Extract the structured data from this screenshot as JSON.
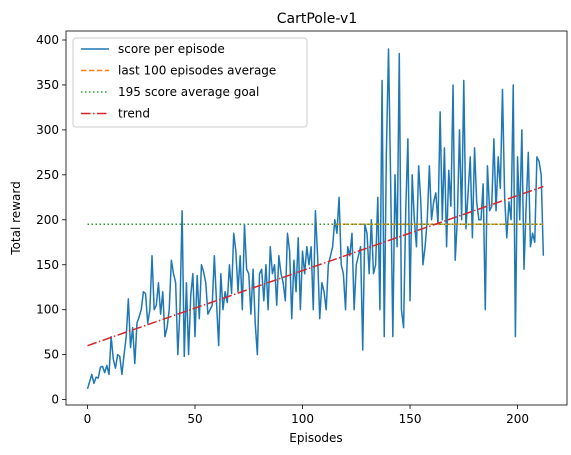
{
  "chart_data": {
    "type": "line",
    "title": "CartPole-v1",
    "xlabel": "Episodes",
    "ylabel": "Total reward",
    "xlim": [
      -10,
      223
    ],
    "ylim": [
      -6,
      410
    ],
    "xticks": [
      0,
      50,
      100,
      150,
      200
    ],
    "yticks": [
      0,
      50,
      100,
      150,
      200,
      250,
      300,
      350,
      400
    ],
    "grid": false,
    "legend_position": "top-left",
    "series": [
      {
        "name": "score per episode",
        "color": "#1f77b4",
        "style": "solid",
        "x": [
          0,
          1,
          2,
          3,
          4,
          5,
          6,
          7,
          8,
          9,
          10,
          11,
          12,
          13,
          14,
          15,
          16,
          17,
          18,
          19,
          20,
          21,
          22,
          23,
          24,
          25,
          26,
          27,
          28,
          29,
          30,
          31,
          32,
          33,
          34,
          35,
          36,
          37,
          38,
          39,
          40,
          41,
          42,
          43,
          44,
          45,
          46,
          47,
          48,
          49,
          50,
          51,
          52,
          53,
          54,
          55,
          56,
          57,
          58,
          59,
          60,
          61,
          62,
          63,
          64,
          65,
          66,
          67,
          68,
          69,
          70,
          71,
          72,
          73,
          74,
          75,
          76,
          77,
          78,
          79,
          80,
          81,
          82,
          83,
          84,
          85,
          86,
          87,
          88,
          89,
          90,
          91,
          92,
          93,
          94,
          95,
          96,
          97,
          98,
          99,
          100,
          101,
          102,
          103,
          104,
          105,
          106,
          107,
          108,
          109,
          110,
          111,
          112,
          113,
          114,
          115,
          116,
          117,
          118,
          119,
          120,
          121,
          122,
          123,
          124,
          125,
          126,
          127,
          128,
          129,
          130,
          131,
          132,
          133,
          134,
          135,
          136,
          137,
          138,
          139,
          140,
          141,
          142,
          143,
          144,
          145,
          146,
          147,
          148,
          149,
          150,
          151,
          152,
          153,
          154,
          155,
          156,
          157,
          158,
          159,
          160,
          161,
          162,
          163,
          164,
          165,
          166,
          167,
          168,
          169,
          170,
          171,
          172,
          173,
          174,
          175,
          176,
          177,
          178,
          179,
          180,
          181,
          182,
          183,
          184,
          185,
          186,
          187,
          188,
          189,
          190,
          191,
          192,
          193,
          194,
          195,
          196,
          197,
          198,
          199,
          200,
          201,
          202,
          203,
          204,
          205,
          206,
          207,
          208,
          209,
          210,
          211,
          212
        ],
        "values": [
          12,
          20,
          28,
          18,
          25,
          24,
          36,
          37,
          30,
          38,
          28,
          70,
          45,
          35,
          50,
          48,
          28,
          50,
          70,
          112,
          58,
          80,
          40,
          85,
          92,
          100,
          120,
          118,
          85,
          100,
          160,
          100,
          105,
          130,
          95,
          120,
          70,
          80,
          100,
          155,
          140,
          130,
          50,
          100,
          210,
          48,
          130,
          50,
          115,
          140,
          70,
          138,
          90,
          150,
          142,
          130,
          95,
          100,
          105,
          160,
          108,
          60,
          140,
          100,
          120,
          108,
          150,
          118,
          185,
          165,
          120,
          160,
          100,
          195,
          145,
          140,
          95,
          145,
          85,
          50,
          140,
          145,
          110,
          150,
          100,
          170,
          140,
          150,
          105,
          160,
          140,
          130,
          110,
          185,
          165,
          90,
          155,
          120,
          180,
          100,
          165,
          140,
          170,
          150,
          170,
          100,
          210,
          160,
          90,
          130,
          120,
          100,
          150,
          160,
          170,
          200,
          185,
          225,
          150,
          140,
          100,
          170,
          160,
          185,
          100,
          150,
          160,
          170,
          55,
          195,
          185,
          140,
          200,
          140,
          150,
          225,
          100,
          355,
          70,
          275,
          390,
          240,
          70,
          250,
          170,
          385,
          100,
          80,
          210,
          290,
          110,
          250,
          200,
          170,
          260,
          220,
          150,
          170,
          200,
          260,
          200,
          220,
          230,
          195,
          320,
          200,
          280,
          170,
          255,
          215,
          350,
          155,
          200,
          300,
          200,
          355,
          190,
          230,
          270,
          180,
          280,
          220,
          200,
          200,
          240,
          100,
          260,
          210,
          215,
          290,
          210,
          270,
          235,
          345,
          225,
          180,
          220,
          200,
          350,
          70,
          270,
          200,
          300,
          145,
          215,
          275,
          170,
          185,
          175,
          270,
          265,
          250,
          160
        ]
      },
      {
        "name": "last 100 episodes average",
        "color": "#ff7f0e",
        "style": "dashed",
        "x": [
          115,
          212
        ],
        "values": [
          195,
          195
        ]
      },
      {
        "name": "195 score average goal",
        "color": "#2ca02c",
        "style": "dotted",
        "x": [
          0,
          212
        ],
        "values": [
          195,
          195
        ]
      },
      {
        "name": "trend",
        "color": "#d62728",
        "style": "dashdot",
        "x": [
          0,
          212
        ],
        "values": [
          60,
          237
        ]
      }
    ]
  }
}
